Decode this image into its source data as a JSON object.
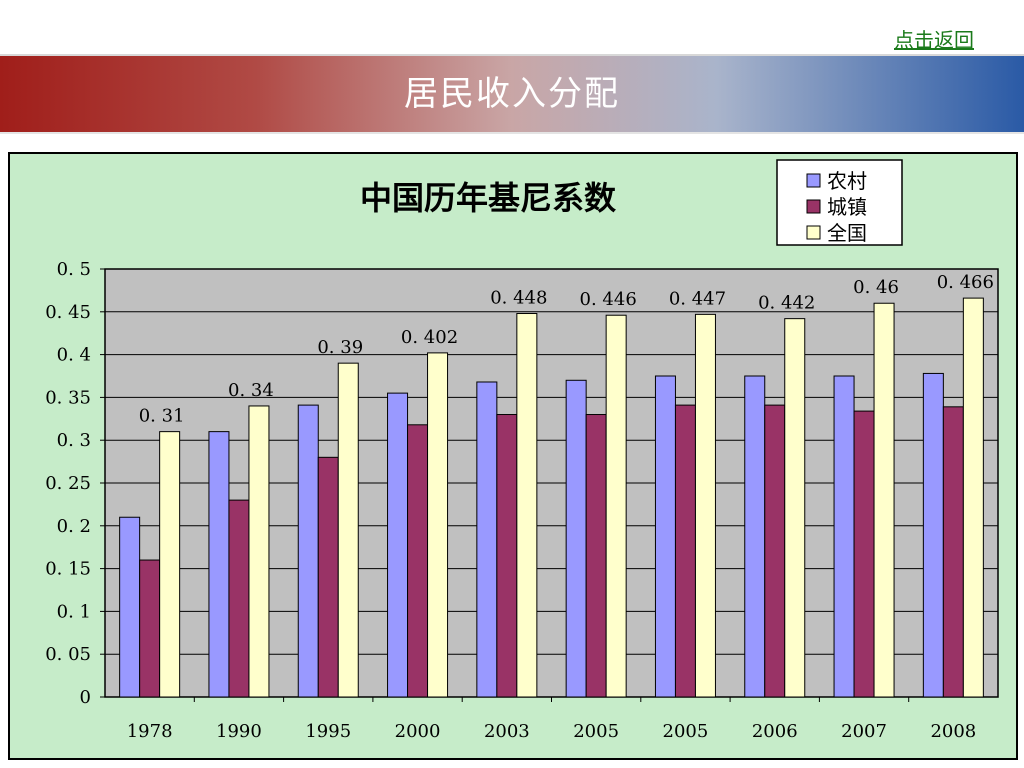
{
  "header": {
    "back_link": "点击返回",
    "title": "居民收入分配"
  },
  "colors": {
    "series_rural": "#9999ff",
    "series_urban": "#993366",
    "series_national": "#ffffcc",
    "plot_bg": "#c0c0c0",
    "frame_bg": "#c6ecc9"
  },
  "chart_data": {
    "type": "bar",
    "title": "中国历年基尼系数",
    "xlabel": "",
    "ylabel": "",
    "ylim": [
      0,
      0.5
    ],
    "yticks": [
      "0",
      "0.05",
      "0.1",
      "0.15",
      "0.2",
      "0.25",
      "0.3",
      "0.35",
      "0.4",
      "0.45",
      "0.5"
    ],
    "categories": [
      "1978",
      "1990",
      "1995",
      "2000",
      "2003",
      "2005",
      "2005",
      "2006",
      "2007",
      "2008"
    ],
    "series": [
      {
        "name": "农村",
        "color": "#9999ff",
        "values": [
          0.21,
          0.31,
          0.341,
          0.355,
          0.368,
          0.37,
          0.375,
          0.375,
          0.375,
          0.378
        ]
      },
      {
        "name": "城镇",
        "color": "#993366",
        "values": [
          0.16,
          0.23,
          0.28,
          0.318,
          0.33,
          0.33,
          0.341,
          0.341,
          0.334,
          0.339
        ]
      },
      {
        "name": "全国",
        "color": "#ffffcc",
        "values": [
          0.31,
          0.34,
          0.39,
          0.402,
          0.448,
          0.446,
          0.447,
          0.442,
          0.46,
          0.466
        ]
      }
    ],
    "data_labels": [
      "0.31",
      "0.34",
      "0.39",
      "0.402",
      "0.448",
      "0.446",
      "0.447",
      "0.442",
      "0.46",
      "0.466"
    ],
    "legend": "top-right",
    "grid": true
  }
}
